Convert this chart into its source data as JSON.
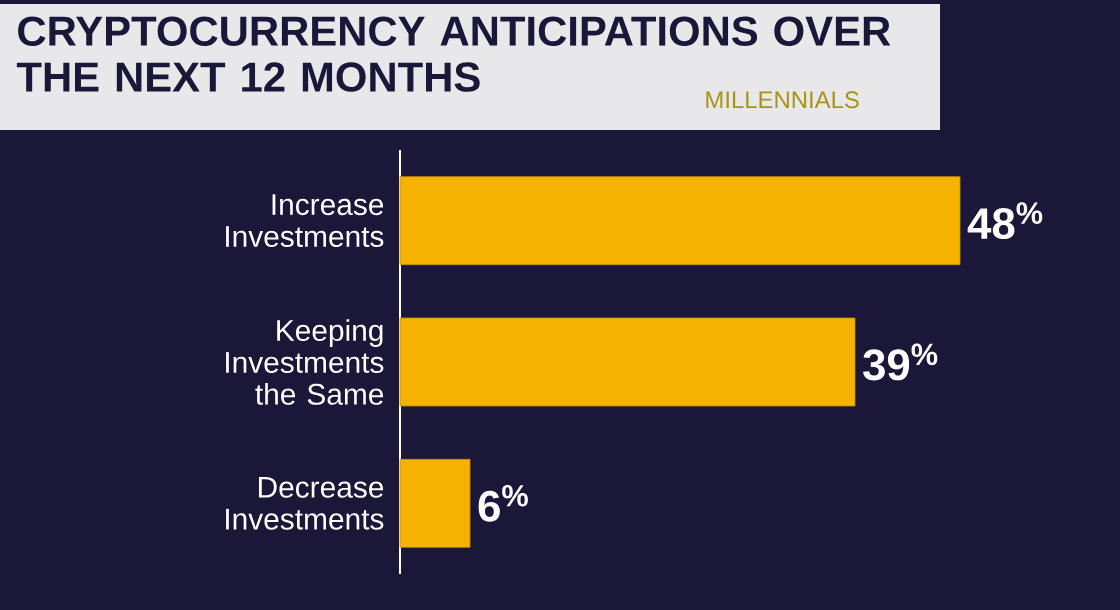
{
  "chart_data": {
    "type": "bar",
    "orientation": "horizontal",
    "title": "CRYPTOCURRENCY ANTICIPATIONS OVER THE NEXT 12 MONTHS",
    "subtitle": "MILLENNIALS",
    "categories": [
      "Increase Investments",
      "Keeping Investments the Same",
      "Decrease Investments"
    ],
    "values": [
      48,
      39,
      6
    ],
    "value_labels": [
      "48$^{%}$",
      "39$^{%}$",
      "6$^{%}$"
    ],
    "color": "#f5b300"
  }
}
